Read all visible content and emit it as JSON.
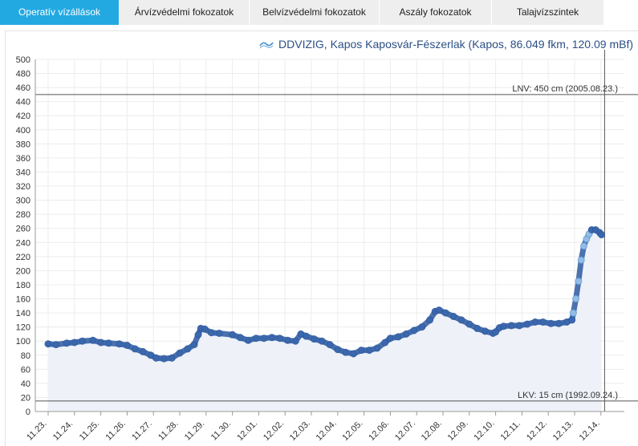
{
  "tabs": [
    {
      "label": "Operatív vízállások",
      "active": true
    },
    {
      "label": "Árvízvédelmi  fokozatok",
      "active": false
    },
    {
      "label": "Belvízvédelmi fokozatok",
      "active": false
    },
    {
      "label": "Aszály fokozatok",
      "active": false
    },
    {
      "label": "Talajvízszintek",
      "active": false
    }
  ],
  "chart_data": {
    "type": "line",
    "title": "DDVIZIG, Kapos Kaposvár-Fészerlak (Kapos, 86.049 fkm, 120.09 mBf)",
    "xlabel": "",
    "ylabel": "",
    "ylim": [
      0,
      500
    ],
    "y_ticks": [
      0,
      20,
      40,
      60,
      80,
      100,
      120,
      140,
      160,
      180,
      200,
      220,
      240,
      260,
      280,
      300,
      320,
      340,
      360,
      380,
      400,
      420,
      440,
      460,
      480,
      500
    ],
    "x_ticks": [
      "11.23.",
      "11.24.",
      "11.25.",
      "11.26.",
      "11.27.",
      "11.28.",
      "11.29.",
      "11.30.",
      "12.01.",
      "12.02.",
      "12.03.",
      "12.04.",
      "12.05.",
      "12.06.",
      "12.07.",
      "12.08.",
      "12.09.",
      "12.10.",
      "12.11.",
      "12.12.",
      "12.13.",
      "12.14."
    ],
    "grid": true,
    "reference_lines": [
      {
        "label": "LNV: 450 cm (2005.08.23.)",
        "value": 450
      },
      {
        "label": "LKV: 15 cm (1992.09.24.)",
        "value": 15
      }
    ],
    "series": [
      {
        "values_by_day": [
          [
            0.0,
            96
          ],
          [
            0.3,
            95
          ],
          [
            0.7,
            97
          ],
          [
            1.0,
            98
          ],
          [
            1.3,
            100
          ],
          [
            1.7,
            101
          ],
          [
            2.0,
            98
          ],
          [
            2.3,
            97
          ],
          [
            2.7,
            96
          ],
          [
            3.0,
            94
          ],
          [
            3.3,
            89
          ],
          [
            3.6,
            85
          ],
          [
            3.9,
            80
          ],
          [
            4.1,
            76
          ],
          [
            4.4,
            75
          ],
          [
            4.7,
            76
          ],
          [
            5.0,
            83
          ],
          [
            5.3,
            89
          ],
          [
            5.55,
            95
          ],
          [
            5.7,
            109
          ],
          [
            5.8,
            118
          ],
          [
            5.95,
            117
          ],
          [
            6.2,
            112
          ],
          [
            6.5,
            111
          ],
          [
            7.0,
            109
          ],
          [
            7.3,
            105
          ],
          [
            7.6,
            101
          ],
          [
            7.9,
            104
          ],
          [
            8.2,
            104
          ],
          [
            8.5,
            105
          ],
          [
            8.8,
            104
          ],
          [
            9.1,
            101
          ],
          [
            9.4,
            100
          ],
          [
            9.6,
            110
          ],
          [
            9.8,
            107
          ],
          [
            10.1,
            103
          ],
          [
            10.4,
            100
          ],
          [
            10.7,
            95
          ],
          [
            11.0,
            88
          ],
          [
            11.3,
            84
          ],
          [
            11.6,
            82
          ],
          [
            11.9,
            87
          ],
          [
            12.2,
            87
          ],
          [
            12.5,
            90
          ],
          [
            12.8,
            98
          ],
          [
            13.0,
            104
          ],
          [
            13.3,
            106
          ],
          [
            13.6,
            110
          ],
          [
            13.9,
            115
          ],
          [
            14.2,
            120
          ],
          [
            14.5,
            130
          ],
          [
            14.7,
            142
          ],
          [
            14.85,
            144
          ],
          [
            15.1,
            140
          ],
          [
            15.4,
            135
          ],
          [
            15.7,
            130
          ],
          [
            16.0,
            124
          ],
          [
            16.3,
            118
          ],
          [
            16.6,
            114
          ],
          [
            16.9,
            111
          ],
          [
            17.0,
            113
          ],
          [
            17.15,
            119
          ],
          [
            17.3,
            121
          ],
          [
            17.6,
            122
          ],
          [
            17.9,
            122
          ],
          [
            18.2,
            124
          ],
          [
            18.5,
            127
          ],
          [
            18.8,
            127
          ],
          [
            19.1,
            125
          ],
          [
            19.4,
            125
          ],
          [
            19.7,
            127
          ],
          [
            19.9,
            130
          ],
          [
            19.95,
            140
          ],
          [
            20.05,
            160
          ],
          [
            20.15,
            185
          ],
          [
            20.25,
            215
          ],
          [
            20.35,
            235
          ],
          [
            20.45,
            245
          ],
          [
            20.55,
            252
          ],
          [
            20.65,
            258
          ],
          [
            20.8,
            258
          ],
          [
            20.95,
            254
          ],
          [
            21.02,
            251
          ]
        ]
      }
    ]
  }
}
